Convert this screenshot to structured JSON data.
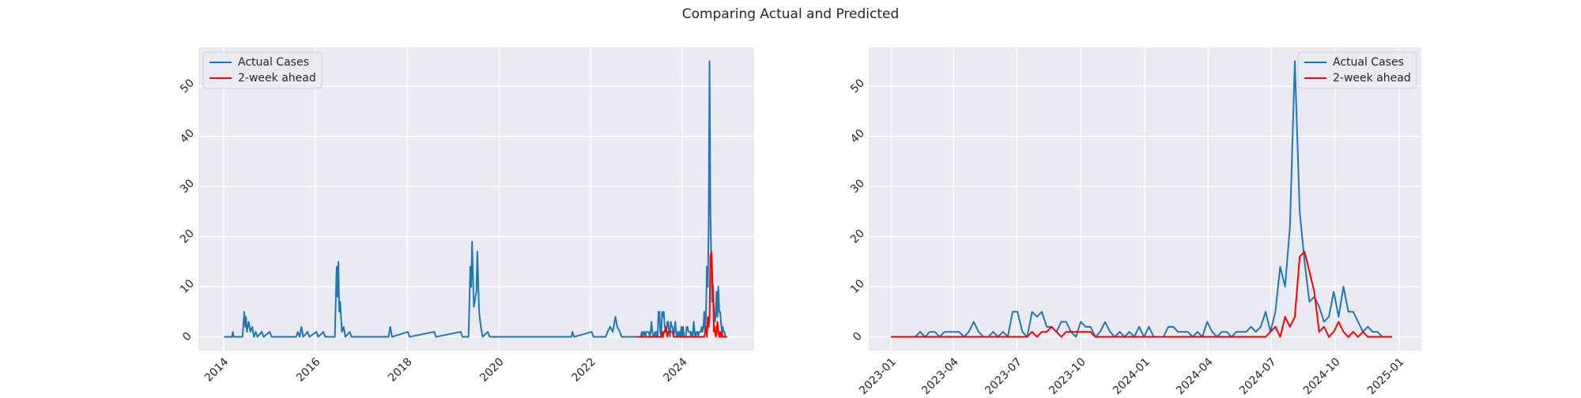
{
  "title": "Comparing Actual and Predicted",
  "chart_data": [
    {
      "type": "line",
      "grid": true,
      "legend": "upper left",
      "xlim": [
        "2013-06-15",
        "2025-07-25"
      ],
      "xticks": [
        {
          "value": "2014-01-01",
          "label": "2014"
        },
        {
          "value": "2016-01-01",
          "label": "2016"
        },
        {
          "value": "2018-01-01",
          "label": "2018"
        },
        {
          "value": "2020-01-01",
          "label": "2020"
        },
        {
          "value": "2022-01-01",
          "label": "2022"
        },
        {
          "value": "2024-01-01",
          "label": "2024"
        }
      ],
      "ylim": [
        -2.75,
        57.75
      ],
      "yticks": [
        0,
        10,
        20,
        30,
        40,
        50
      ],
      "series": [
        {
          "name": "Actual Cases",
          "color": "#1f77b4",
          "x": [
            "2014-01-05",
            "2014-03-09",
            "2014-03-16",
            "2014-03-23",
            "2014-06-01",
            "2014-06-15",
            "2014-06-22",
            "2014-06-29",
            "2014-07-06",
            "2014-07-20",
            "2014-08-03",
            "2014-08-17",
            "2014-08-31",
            "2014-09-14",
            "2014-09-28",
            "2014-11-02",
            "2014-11-16",
            "2015-01-04",
            "2015-01-18",
            "2015-08-02",
            "2015-08-16",
            "2015-08-30",
            "2015-09-13",
            "2015-09-27",
            "2015-11-01",
            "2015-11-15",
            "2016-01-10",
            "2016-01-24",
            "2016-03-06",
            "2016-03-20",
            "2016-06-05",
            "2016-06-19",
            "2016-06-26",
            "2016-07-03",
            "2016-07-10",
            "2016-07-17",
            "2016-07-31",
            "2016-08-14",
            "2016-08-28",
            "2016-10-02",
            "2016-10-16",
            "2017-08-06",
            "2017-08-20",
            "2017-09-03",
            "2018-01-07",
            "2018-01-21",
            "2018-08-05",
            "2018-08-19",
            "2019-03-03",
            "2019-03-17",
            "2019-05-05",
            "2019-05-19",
            "2019-05-26",
            "2019-06-02",
            "2019-06-16",
            "2019-07-07",
            "2019-07-14",
            "2019-07-28",
            "2019-08-11",
            "2019-08-25",
            "2019-10-06",
            "2019-10-20",
            "2021-08-01",
            "2021-08-08",
            "2021-08-22",
            "2022-01-09",
            "2022-01-23",
            "2022-05-01",
            "2022-05-15",
            "2022-06-05",
            "2022-06-26",
            "2022-07-17",
            "2022-07-31",
            "2022-08-21",
            "2022-09-04",
            "2023-01-01",
            "2023-01-08",
            "2023-01-15",
            "2023-01-22",
            "2023-01-29",
            "2023-02-05",
            "2023-02-12",
            "2023-02-19",
            "2023-02-26",
            "2023-03-05",
            "2023-03-12",
            "2023-03-19",
            "2023-03-26",
            "2023-04-02",
            "2023-04-09",
            "2023-04-16",
            "2023-04-23",
            "2023-04-30",
            "2023-05-07",
            "2023-05-14",
            "2023-05-21",
            "2023-05-28",
            "2023-06-04",
            "2023-06-11",
            "2023-06-18",
            "2023-06-25",
            "2023-07-02",
            "2023-07-09",
            "2023-07-16",
            "2023-07-23",
            "2023-07-30",
            "2023-08-06",
            "2023-08-13",
            "2023-08-20",
            "2023-08-27",
            "2023-09-03",
            "2023-09-10",
            "2023-09-17",
            "2023-09-24",
            "2023-10-01",
            "2023-10-08",
            "2023-10-15",
            "2023-10-22",
            "2023-10-29",
            "2023-11-05",
            "2023-11-12",
            "2023-11-19",
            "2023-11-26",
            "2023-12-03",
            "2023-12-10",
            "2023-12-17",
            "2023-12-24",
            "2023-12-31",
            "2024-01-07",
            "2024-01-14",
            "2024-01-21",
            "2024-01-28",
            "2024-02-04",
            "2024-02-11",
            "2024-02-18",
            "2024-02-25",
            "2024-03-03",
            "2024-03-10",
            "2024-03-17",
            "2024-03-24",
            "2024-03-31",
            "2024-04-07",
            "2024-04-14",
            "2024-04-21",
            "2024-04-28",
            "2024-05-05",
            "2024-05-12",
            "2024-05-19",
            "2024-05-26",
            "2024-06-02",
            "2024-06-09",
            "2024-06-16",
            "2024-06-23",
            "2024-06-30",
            "2024-07-07",
            "2024-07-14",
            "2024-07-21",
            "2024-07-28",
            "2024-08-04",
            "2024-08-11",
            "2024-08-18",
            "2024-08-25",
            "2024-09-01",
            "2024-09-08",
            "2024-09-15",
            "2024-09-22",
            "2024-09-29",
            "2024-10-06",
            "2024-10-13",
            "2024-10-20",
            "2024-10-27",
            "2024-11-03",
            "2024-11-10",
            "2024-11-17",
            "2024-11-24",
            "2024-12-01",
            "2024-12-08",
            "2024-12-15",
            "2024-12-22"
          ],
          "values": [
            0,
            0,
            1,
            0,
            0,
            5,
            2,
            4,
            1,
            3,
            1,
            2,
            0,
            1,
            0,
            1,
            0,
            1,
            0,
            0,
            1,
            0,
            2,
            0,
            1,
            0,
            1,
            0,
            1,
            0,
            0,
            14,
            8,
            15,
            5,
            7,
            1,
            2,
            0,
            1,
            0,
            0,
            2,
            0,
            1,
            0,
            1,
            0,
            1,
            0,
            0,
            14,
            10,
            19,
            6,
            9,
            17,
            5,
            2,
            0,
            1,
            0,
            0,
            1,
            0,
            1,
            0,
            0,
            1,
            2,
            1,
            4,
            2,
            1,
            0,
            0,
            0,
            0,
            0,
            0,
            0,
            1,
            0,
            1,
            1,
            0,
            1,
            1,
            1,
            1,
            0,
            1,
            3,
            1,
            0,
            0,
            1,
            0,
            1,
            0,
            5,
            5,
            1,
            0,
            5,
            4,
            5,
            2,
            2,
            1,
            3,
            3,
            1,
            0,
            3,
            2,
            2,
            0,
            1,
            3,
            1,
            0,
            1,
            0,
            1,
            0,
            2,
            0,
            2,
            0,
            0,
            0,
            2,
            2,
            1,
            1,
            1,
            0,
            1,
            0,
            3,
            1,
            0,
            1,
            1,
            0,
            1,
            1,
            1,
            2,
            1,
            2,
            5,
            1,
            5,
            14,
            10,
            22,
            55,
            25,
            15,
            7,
            8,
            6,
            3,
            4,
            9,
            4,
            10,
            5,
            5,
            3,
            1,
            2,
            1,
            1,
            0,
            0,
            0
          ]
        },
        {
          "name": "2-week ahead",
          "color": "#ff0000",
          "x": [
            "2023-01-01",
            "2023-01-08",
            "2023-01-15",
            "2023-01-22",
            "2023-01-29",
            "2023-02-05",
            "2023-02-12",
            "2023-02-19",
            "2023-02-26",
            "2023-03-05",
            "2023-03-12",
            "2023-03-19",
            "2023-03-26",
            "2023-04-02",
            "2023-04-09",
            "2023-04-16",
            "2023-04-23",
            "2023-04-30",
            "2023-05-07",
            "2023-05-14",
            "2023-05-21",
            "2023-05-28",
            "2023-06-04",
            "2023-06-11",
            "2023-06-18",
            "2023-06-25",
            "2023-07-02",
            "2023-07-09",
            "2023-07-16",
            "2023-07-23",
            "2023-07-30",
            "2023-08-06",
            "2023-08-13",
            "2023-08-20",
            "2023-08-27",
            "2023-09-03",
            "2023-09-10",
            "2023-09-17",
            "2023-09-24",
            "2023-10-01",
            "2023-10-08",
            "2023-10-15",
            "2023-10-22",
            "2023-10-29",
            "2023-11-05",
            "2023-11-12",
            "2023-11-19",
            "2023-11-26",
            "2023-12-03",
            "2023-12-10",
            "2023-12-17",
            "2023-12-24",
            "2023-12-31",
            "2024-01-07",
            "2024-01-14",
            "2024-01-21",
            "2024-01-28",
            "2024-02-04",
            "2024-02-11",
            "2024-02-18",
            "2024-02-25",
            "2024-03-03",
            "2024-03-10",
            "2024-03-17",
            "2024-03-24",
            "2024-03-31",
            "2024-04-07",
            "2024-04-14",
            "2024-04-21",
            "2024-04-28",
            "2024-05-05",
            "2024-05-12",
            "2024-05-19",
            "2024-05-26",
            "2024-06-02",
            "2024-06-09",
            "2024-06-16",
            "2024-06-23",
            "2024-06-30",
            "2024-07-07",
            "2024-07-14",
            "2024-07-21",
            "2024-07-28",
            "2024-08-04",
            "2024-08-11",
            "2024-08-18",
            "2024-08-25",
            "2024-09-01",
            "2024-09-08",
            "2024-09-15",
            "2024-09-22",
            "2024-09-29",
            "2024-10-06",
            "2024-10-13",
            "2024-10-20",
            "2024-10-27",
            "2024-11-03",
            "2024-11-10",
            "2024-11-17",
            "2024-11-24",
            "2024-12-01",
            "2024-12-08",
            "2024-12-15",
            "2024-12-22"
          ],
          "values": [
            0,
            0,
            0,
            0,
            0,
            0,
            0,
            0,
            0,
            0,
            0,
            0,
            0,
            0,
            0,
            0,
            0,
            0,
            0,
            0,
            0,
            0,
            0,
            0,
            0,
            0,
            0,
            0,
            0,
            1,
            0,
            1,
            1,
            2,
            1,
            0,
            1,
            1,
            1,
            1,
            1,
            1,
            0,
            0,
            0,
            0,
            0,
            0,
            0,
            0,
            0,
            0,
            0,
            0,
            0,
            0,
            0,
            0,
            0,
            0,
            0,
            0,
            0,
            0,
            0,
            0,
            0,
            0,
            0,
            0,
            0,
            0,
            0,
            0,
            0,
            0,
            0,
            0,
            1,
            2,
            0,
            4,
            2,
            4,
            16,
            17,
            13,
            9,
            1,
            2,
            0,
            1,
            3,
            1,
            0,
            1,
            0,
            1,
            0,
            0,
            0,
            0,
            0,
            0
          ]
        }
      ]
    },
    {
      "type": "line",
      "grid": true,
      "legend": "upper right",
      "xlim": [
        "2022-11-30",
        "2025-02-02"
      ],
      "xticks": [
        {
          "value": "2023-01-01",
          "label": "2023-01"
        },
        {
          "value": "2023-04-01",
          "label": "2023-04"
        },
        {
          "value": "2023-07-01",
          "label": "2023-07"
        },
        {
          "value": "2023-10-01",
          "label": "2023-10"
        },
        {
          "value": "2024-01-01",
          "label": "2024-01"
        },
        {
          "value": "2024-04-01",
          "label": "2024-04"
        },
        {
          "value": "2024-07-01",
          "label": "2024-07"
        },
        {
          "value": "2024-10-01",
          "label": "2024-10"
        },
        {
          "value": "2025-01-01",
          "label": "2025-01"
        }
      ],
      "ylim": [
        -2.75,
        57.75
      ],
      "yticks": [
        0,
        10,
        20,
        30,
        40,
        50
      ],
      "x": [
        "2023-01-01",
        "2023-01-08",
        "2023-01-15",
        "2023-01-22",
        "2023-01-29",
        "2023-02-05",
        "2023-02-12",
        "2023-02-19",
        "2023-02-26",
        "2023-03-05",
        "2023-03-12",
        "2023-03-19",
        "2023-03-26",
        "2023-04-02",
        "2023-04-09",
        "2023-04-16",
        "2023-04-23",
        "2023-04-30",
        "2023-05-07",
        "2023-05-14",
        "2023-05-21",
        "2023-05-28",
        "2023-06-04",
        "2023-06-11",
        "2023-06-18",
        "2023-06-25",
        "2023-07-02",
        "2023-07-09",
        "2023-07-16",
        "2023-07-23",
        "2023-07-30",
        "2023-08-06",
        "2023-08-13",
        "2023-08-20",
        "2023-08-27",
        "2023-09-03",
        "2023-09-10",
        "2023-09-17",
        "2023-09-24",
        "2023-10-01",
        "2023-10-08",
        "2023-10-15",
        "2023-10-22",
        "2023-10-29",
        "2023-11-05",
        "2023-11-12",
        "2023-11-19",
        "2023-11-26",
        "2023-12-03",
        "2023-12-10",
        "2023-12-17",
        "2023-12-24",
        "2023-12-31",
        "2024-01-07",
        "2024-01-14",
        "2024-01-21",
        "2024-01-28",
        "2024-02-04",
        "2024-02-11",
        "2024-02-18",
        "2024-02-25",
        "2024-03-03",
        "2024-03-10",
        "2024-03-17",
        "2024-03-24",
        "2024-03-31",
        "2024-04-07",
        "2024-04-14",
        "2024-04-21",
        "2024-04-28",
        "2024-05-05",
        "2024-05-12",
        "2024-05-19",
        "2024-05-26",
        "2024-06-02",
        "2024-06-09",
        "2024-06-16",
        "2024-06-23",
        "2024-06-30",
        "2024-07-07",
        "2024-07-14",
        "2024-07-21",
        "2024-07-28",
        "2024-08-04",
        "2024-08-11",
        "2024-08-18",
        "2024-08-25",
        "2024-09-01",
        "2024-09-08",
        "2024-09-15",
        "2024-09-22",
        "2024-09-29",
        "2024-10-06",
        "2024-10-13",
        "2024-10-20",
        "2024-10-27",
        "2024-11-03",
        "2024-11-10",
        "2024-11-17",
        "2024-11-24",
        "2024-12-01",
        "2024-12-08",
        "2024-12-15",
        "2024-12-22"
      ],
      "series": [
        {
          "name": "Actual Cases",
          "color": "#1f77b4",
          "values": [
            0,
            0,
            0,
            0,
            0,
            0,
            1,
            0,
            1,
            1,
            0,
            1,
            1,
            1,
            1,
            0,
            1,
            3,
            1,
            0,
            0,
            1,
            0,
            1,
            0,
            5,
            5,
            1,
            0,
            5,
            4,
            5,
            2,
            2,
            1,
            3,
            3,
            1,
            0,
            3,
            2,
            2,
            0,
            1,
            3,
            1,
            0,
            1,
            0,
            1,
            0,
            2,
            0,
            2,
            0,
            0,
            0,
            2,
            2,
            1,
            1,
            1,
            0,
            1,
            0,
            3,
            1,
            0,
            1,
            1,
            0,
            1,
            1,
            1,
            2,
            1,
            2,
            5,
            1,
            5,
            14,
            10,
            22,
            55,
            25,
            15,
            7,
            8,
            6,
            3,
            4,
            9,
            4,
            10,
            5,
            5,
            3,
            1,
            2,
            1,
            1,
            0,
            0,
            0
          ]
        },
        {
          "name": "2-week ahead",
          "color": "#ff0000",
          "values": [
            0,
            0,
            0,
            0,
            0,
            0,
            0,
            0,
            0,
            0,
            0,
            0,
            0,
            0,
            0,
            0,
            0,
            0,
            0,
            0,
            0,
            0,
            0,
            0,
            0,
            0,
            0,
            0,
            0,
            1,
            0,
            1,
            1,
            2,
            1,
            0,
            1,
            1,
            1,
            1,
            1,
            1,
            0,
            0,
            0,
            0,
            0,
            0,
            0,
            0,
            0,
            0,
            0,
            0,
            0,
            0,
            0,
            0,
            0,
            0,
            0,
            0,
            0,
            0,
            0,
            0,
            0,
            0,
            0,
            0,
            0,
            0,
            0,
            0,
            0,
            0,
            0,
            0,
            1,
            2,
            0,
            4,
            2,
            4,
            16,
            17,
            13,
            9,
            1,
            2,
            0,
            1,
            3,
            1,
            0,
            1,
            0,
            1,
            0,
            0,
            0,
            0,
            0,
            0
          ]
        }
      ]
    }
  ]
}
